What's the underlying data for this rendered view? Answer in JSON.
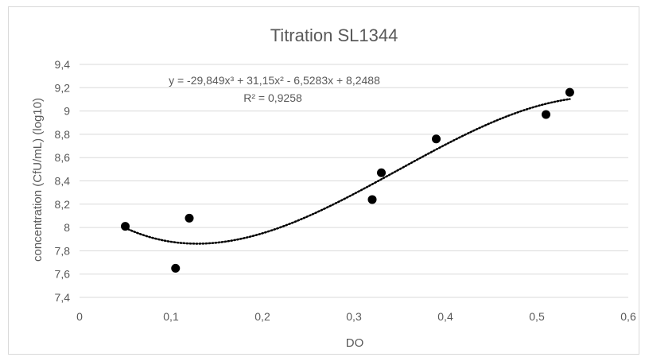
{
  "chart_data": {
    "type": "scatter",
    "title": "Titration SL1344",
    "xlabel": "DO",
    "ylabel": "concentration (CfU/mL) (log10)",
    "xlim": [
      0,
      0.6
    ],
    "ylim": [
      7.4,
      9.4
    ],
    "x_ticks": [
      "0",
      "0,1",
      "0,2",
      "0,3",
      "0,4",
      "0,5",
      "0,6"
    ],
    "y_ticks": [
      "7,4",
      "7,6",
      "7,8",
      "8",
      "8,2",
      "8,4",
      "8,6",
      "8,8",
      "9",
      "9,2",
      "9,4"
    ],
    "grid": "horizontal",
    "legend": "none",
    "series": [
      {
        "points": [
          {
            "x": 0.05,
            "y": 8.01
          },
          {
            "x": 0.105,
            "y": 7.65
          },
          {
            "x": 0.12,
            "y": 8.08
          },
          {
            "x": 0.32,
            "y": 8.24
          },
          {
            "x": 0.33,
            "y": 8.47
          },
          {
            "x": 0.39,
            "y": 8.76
          },
          {
            "x": 0.51,
            "y": 8.97
          },
          {
            "x": 0.536,
            "y": 9.16
          }
        ]
      }
    ],
    "trendline": {
      "type": "polynomial",
      "order": 3,
      "coefficients": [
        -29.849,
        31.15,
        -6.5283,
        8.2488
      ],
      "x_range": [
        0.05,
        0.536
      ],
      "style": "dotted",
      "equation_label": "y = -29,849x³ + 31,15x² - 6,5283x + 8,2488",
      "r2_label": "R² = 0,9258"
    }
  },
  "colors": {
    "marker": "#000000",
    "trendline": "#000000",
    "gridline": "#d9d9d9",
    "text": "#595959",
    "border": "#d9d9d9"
  }
}
